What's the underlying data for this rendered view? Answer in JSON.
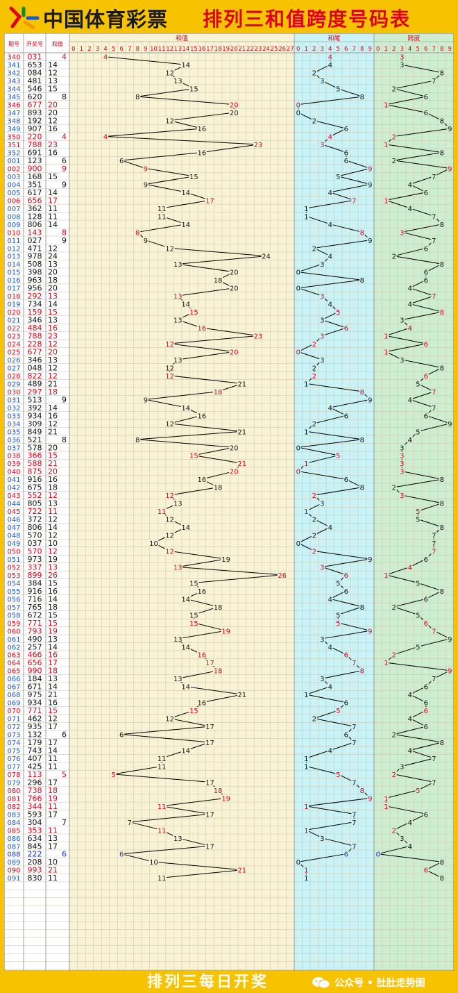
{
  "header": {
    "brand": "中国体育彩票",
    "title": "排列三和值跨度号码表"
  },
  "footer": {
    "text": "排列三每日开奖",
    "badge": "公众号 • 肚肚走势图"
  },
  "colors": {
    "background": "#f7c300",
    "sum_area": "#f9f3d6",
    "tail_area": "#c9f3f6",
    "span_area": "#cdeed0",
    "highlight": "#e0001b",
    "blue": "#1a33cc",
    "line": "#000000"
  },
  "chart_data": {
    "type": "table",
    "headers": {
      "issue": "期号",
      "draw": "开奖号",
      "sum": "和值",
      "tail": "和尾",
      "span": "跨度"
    },
    "sum_range": [
      0,
      27
    ],
    "tail_range": [
      0,
      9
    ],
    "span_range": [
      0,
      9
    ],
    "rows": [
      {
        "i": "340",
        "n": "031",
        "s": 4,
        "t": 4,
        "p": 3,
        "r": 1
      },
      {
        "i": "341",
        "n": "653",
        "s": 14,
        "t": 4,
        "p": 3,
        "r": 0
      },
      {
        "i": "342",
        "n": "084",
        "s": 12,
        "t": 2,
        "p": 8,
        "r": 0
      },
      {
        "i": "343",
        "n": "481",
        "s": 13,
        "t": 3,
        "p": 7,
        "r": 0
      },
      {
        "i": "344",
        "n": "546",
        "s": 15,
        "t": 5,
        "p": 2,
        "r": 0
      },
      {
        "i": "345",
        "n": "620",
        "s": 8,
        "t": 8,
        "p": 6,
        "r": 0
      },
      {
        "i": "346",
        "n": "677",
        "s": 20,
        "t": 0,
        "p": 1,
        "r": 1
      },
      {
        "i": "347",
        "n": "893",
        "s": 20,
        "t": 0,
        "p": 6,
        "r": 0
      },
      {
        "i": "348",
        "n": "192",
        "s": 12,
        "t": 2,
        "p": 8,
        "r": 0
      },
      {
        "i": "349",
        "n": "907",
        "s": 16,
        "t": 6,
        "p": 9,
        "r": 0
      },
      {
        "i": "350",
        "n": "220",
        "s": 4,
        "t": 4,
        "p": 2,
        "r": 1
      },
      {
        "i": "351",
        "n": "788",
        "s": 23,
        "t": 3,
        "p": 1,
        "r": 1
      },
      {
        "i": "352",
        "n": "691",
        "s": 16,
        "t": 6,
        "p": 8,
        "r": 0
      },
      {
        "i": "001",
        "n": "123",
        "s": 6,
        "t": 6,
        "p": 2,
        "r": 0
      },
      {
        "i": "002",
        "n": "900",
        "s": 9,
        "t": 9,
        "p": 9,
        "r": 1
      },
      {
        "i": "003",
        "n": "168",
        "s": 15,
        "t": 5,
        "p": 7,
        "r": 0
      },
      {
        "i": "004",
        "n": "351",
        "s": 9,
        "t": 9,
        "p": 4,
        "r": 0
      },
      {
        "i": "005",
        "n": "617",
        "s": 14,
        "t": 4,
        "p": 6,
        "r": 0
      },
      {
        "i": "006",
        "n": "656",
        "s": 17,
        "t": 7,
        "p": 1,
        "r": 1
      },
      {
        "i": "007",
        "n": "362",
        "s": 11,
        "t": 1,
        "p": 4,
        "r": 0
      },
      {
        "i": "008",
        "n": "128",
        "s": 11,
        "t": 1,
        "p": 7,
        "r": 0
      },
      {
        "i": "009",
        "n": "806",
        "s": 14,
        "t": 4,
        "p": 8,
        "r": 0
      },
      {
        "i": "010",
        "n": "143",
        "s": 8,
        "t": 8,
        "p": 3,
        "r": 1
      },
      {
        "i": "011",
        "n": "027",
        "s": 9,
        "t": 9,
        "p": 7,
        "r": 0
      },
      {
        "i": "012",
        "n": "471",
        "s": 12,
        "t": 2,
        "p": 6,
        "r": 0
      },
      {
        "i": "013",
        "n": "978",
        "s": 24,
        "t": 4,
        "p": 2,
        "r": 0
      },
      {
        "i": "014",
        "n": "508",
        "s": 13,
        "t": 3,
        "p": 8,
        "r": 0
      },
      {
        "i": "015",
        "n": "398",
        "s": 20,
        "t": 0,
        "p": 6,
        "r": 0
      },
      {
        "i": "016",
        "n": "963",
        "s": 18,
        "t": 8,
        "p": 6,
        "r": 0
      },
      {
        "i": "017",
        "n": "956",
        "s": 20,
        "t": 0,
        "p": 4,
        "r": 0
      },
      {
        "i": "018",
        "n": "292",
        "s": 13,
        "t": 3,
        "p": 7,
        "r": 1
      },
      {
        "i": "019",
        "n": "734",
        "s": 14,
        "t": 4,
        "p": 4,
        "r": 0
      },
      {
        "i": "020",
        "n": "159",
        "s": 15,
        "t": 5,
        "p": 8,
        "r": 1
      },
      {
        "i": "021",
        "n": "346",
        "s": 13,
        "t": 3,
        "p": 3,
        "r": 0
      },
      {
        "i": "022",
        "n": "484",
        "s": 16,
        "t": 6,
        "p": 4,
        "r": 1
      },
      {
        "i": "023",
        "n": "788",
        "s": 23,
        "t": 3,
        "p": 1,
        "r": 1
      },
      {
        "i": "024",
        "n": "228",
        "s": 12,
        "t": 2,
        "p": 6,
        "r": 1
      },
      {
        "i": "025",
        "n": "677",
        "s": 20,
        "t": 0,
        "p": 1,
        "r": 1
      },
      {
        "i": "026",
        "n": "346",
        "s": 13,
        "t": 3,
        "p": 3,
        "r": 0
      },
      {
        "i": "027",
        "n": "048",
        "s": 12,
        "t": 2,
        "p": 8,
        "r": 0
      },
      {
        "i": "028",
        "n": "822",
        "s": 12,
        "t": 2,
        "p": 6,
        "r": 1
      },
      {
        "i": "029",
        "n": "489",
        "s": 21,
        "t": 1,
        "p": 5,
        "r": 0
      },
      {
        "i": "030",
        "n": "297",
        "s": 18,
        "t": 8,
        "p": 7,
        "r": 1
      },
      {
        "i": "031",
        "n": "513",
        "s": 9,
        "t": 9,
        "p": 4,
        "r": 0
      },
      {
        "i": "032",
        "n": "392",
        "s": 14,
        "t": 4,
        "p": 7,
        "r": 0
      },
      {
        "i": "033",
        "n": "934",
        "s": 16,
        "t": 6,
        "p": 6,
        "r": 0
      },
      {
        "i": "034",
        "n": "309",
        "s": 12,
        "t": 2,
        "p": 9,
        "r": 0
      },
      {
        "i": "035",
        "n": "849",
        "s": 21,
        "t": 1,
        "p": 5,
        "r": 0
      },
      {
        "i": "036",
        "n": "521",
        "s": 8,
        "t": 8,
        "p": 4,
        "r": 0
      },
      {
        "i": "037",
        "n": "578",
        "s": 20,
        "t": 0,
        "p": 3,
        "r": 0
      },
      {
        "i": "038",
        "n": "366",
        "s": 15,
        "t": 5,
        "p": 3,
        "r": 1
      },
      {
        "i": "039",
        "n": "588",
        "s": 21,
        "t": 1,
        "p": 3,
        "r": 1
      },
      {
        "i": "040",
        "n": "875",
        "s": 20,
        "t": 0,
        "p": 3,
        "r": 1
      },
      {
        "i": "041",
        "n": "916",
        "s": 16,
        "t": 6,
        "p": 8,
        "r": 0
      },
      {
        "i": "042",
        "n": "675",
        "s": 18,
        "t": 8,
        "p": 2,
        "r": 0
      },
      {
        "i": "043",
        "n": "552",
        "s": 12,
        "t": 2,
        "p": 3,
        "r": 1
      },
      {
        "i": "044",
        "n": "805",
        "s": 13,
        "t": 3,
        "p": 8,
        "r": 0
      },
      {
        "i": "045",
        "n": "722",
        "s": 11,
        "t": 1,
        "p": 5,
        "r": 1
      },
      {
        "i": "046",
        "n": "372",
        "s": 12,
        "t": 2,
        "p": 5,
        "r": 0
      },
      {
        "i": "047",
        "n": "806",
        "s": 14,
        "t": 4,
        "p": 8,
        "r": 0
      },
      {
        "i": "048",
        "n": "570",
        "s": 12,
        "t": 2,
        "p": 7,
        "r": 0
      },
      {
        "i": "049",
        "n": "037",
        "s": 10,
        "t": 0,
        "p": 7,
        "r": 0
      },
      {
        "i": "050",
        "n": "570",
        "s": 12,
        "t": 2,
        "p": 7,
        "r": 1
      },
      {
        "i": "051",
        "n": "973",
        "s": 19,
        "t": 9,
        "p": 6,
        "r": 0
      },
      {
        "i": "052",
        "n": "337",
        "s": 13,
        "t": 3,
        "p": 4,
        "r": 1
      },
      {
        "i": "053",
        "n": "899",
        "s": 26,
        "t": 6,
        "p": 1,
        "r": 1
      },
      {
        "i": "054",
        "n": "384",
        "s": 15,
        "t": 5,
        "p": 5,
        "r": 0
      },
      {
        "i": "055",
        "n": "916",
        "s": 16,
        "t": 6,
        "p": 8,
        "r": 0
      },
      {
        "i": "056",
        "n": "716",
        "s": 14,
        "t": 4,
        "p": 6,
        "r": 0
      },
      {
        "i": "057",
        "n": "765",
        "s": 18,
        "t": 8,
        "p": 2,
        "r": 0
      },
      {
        "i": "058",
        "n": "672",
        "s": 15,
        "t": 5,
        "p": 5,
        "r": 0
      },
      {
        "i": "059",
        "n": "771",
        "s": 15,
        "t": 5,
        "p": 6,
        "r": 1
      },
      {
        "i": "060",
        "n": "793",
        "s": 19,
        "t": 9,
        "p": 7,
        "r": 1
      },
      {
        "i": "061",
        "n": "490",
        "s": 13,
        "t": 3,
        "p": 9,
        "r": 0
      },
      {
        "i": "062",
        "n": "257",
        "s": 14,
        "t": 4,
        "p": 5,
        "r": 0
      },
      {
        "i": "063",
        "n": "466",
        "s": 16,
        "t": 6,
        "p": 2,
        "r": 1
      },
      {
        "i": "064",
        "n": "656",
        "s": 17,
        "t": 7,
        "p": 1,
        "r": 1
      },
      {
        "i": "065",
        "n": "990",
        "s": 18,
        "t": 8,
        "p": 9,
        "r": 1
      },
      {
        "i": "066",
        "n": "184",
        "s": 13,
        "t": 3,
        "p": 7,
        "r": 0
      },
      {
        "i": "067",
        "n": "671",
        "s": 14,
        "t": 4,
        "p": 6,
        "r": 0
      },
      {
        "i": "068",
        "n": "975",
        "s": 21,
        "t": 1,
        "p": 4,
        "r": 0
      },
      {
        "i": "069",
        "n": "934",
        "s": 16,
        "t": 6,
        "p": 6,
        "r": 0
      },
      {
        "i": "070",
        "n": "771",
        "s": 15,
        "t": 5,
        "p": 6,
        "r": 1
      },
      {
        "i": "071",
        "n": "462",
        "s": 12,
        "t": 2,
        "p": 4,
        "r": 0
      },
      {
        "i": "072",
        "n": "935",
        "s": 17,
        "t": 7,
        "p": 6,
        "r": 0
      },
      {
        "i": "073",
        "n": "132",
        "s": 6,
        "t": 6,
        "p": 2,
        "r": 0
      },
      {
        "i": "074",
        "n": "179",
        "s": 17,
        "t": 7,
        "p": 8,
        "r": 0
      },
      {
        "i": "075",
        "n": "743",
        "s": 14,
        "t": 4,
        "p": 4,
        "r": 0
      },
      {
        "i": "076",
        "n": "407",
        "s": 11,
        "t": 1,
        "p": 7,
        "r": 0
      },
      {
        "i": "077",
        "n": "425",
        "s": 11,
        "t": 1,
        "p": 3,
        "r": 0
      },
      {
        "i": "078",
        "n": "113",
        "s": 5,
        "t": 5,
        "p": 2,
        "r": 1
      },
      {
        "i": "079",
        "n": "296",
        "s": 17,
        "t": 7,
        "p": 7,
        "r": 0
      },
      {
        "i": "080",
        "n": "738",
        "s": 18,
        "t": 8,
        "p": 5,
        "r": 1
      },
      {
        "i": "081",
        "n": "766",
        "s": 19,
        "t": 9,
        "p": 1,
        "r": 1
      },
      {
        "i": "082",
        "n": "344",
        "s": 11,
        "t": 1,
        "p": 1,
        "r": 1
      },
      {
        "i": "083",
        "n": "593",
        "s": 17,
        "t": 7,
        "p": 6,
        "r": 0
      },
      {
        "i": "084",
        "n": "304",
        "s": 7,
        "t": 7,
        "p": 4,
        "r": 0
      },
      {
        "i": "085",
        "n": "353",
        "s": 11,
        "t": 1,
        "p": 2,
        "r": 1
      },
      {
        "i": "086",
        "n": "634",
        "s": 13,
        "t": 3,
        "p": 3,
        "r": 0
      },
      {
        "i": "087",
        "n": "845",
        "s": 17,
        "t": 7,
        "p": 4,
        "r": 0
      },
      {
        "i": "088",
        "n": "222",
        "s": 6,
        "t": 6,
        "p": 0,
        "r": 2
      },
      {
        "i": "089",
        "n": "208",
        "s": 10,
        "t": 0,
        "p": 8,
        "r": 0
      },
      {
        "i": "090",
        "n": "993",
        "s": 21,
        "t": 1,
        "p": 6,
        "r": 1
      },
      {
        "i": "091",
        "n": "830",
        "s": 11,
        "t": 1,
        "p": 8,
        "r": 0
      }
    ]
  }
}
